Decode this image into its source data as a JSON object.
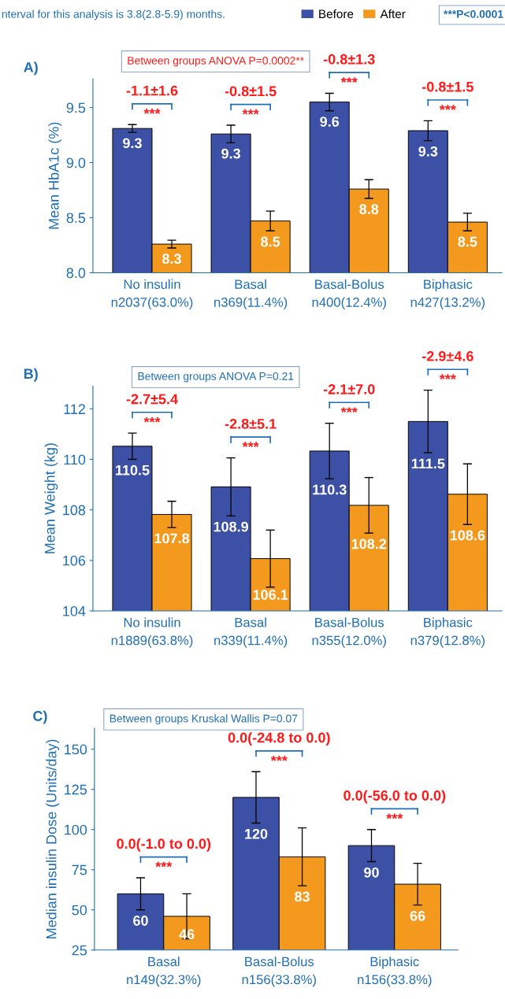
{
  "chart_data": [
    {
      "type": "bar",
      "title": "A)",
      "subtitle": "Between groups ANOVA P=0.0002**",
      "ylabel": "Mean HbA1c (%)",
      "legend": "top",
      "categories": [
        "No insulin\nn2037(63.0%)",
        "Basal\nn369(11.4%)",
        "Basal-Bolus\nn400(12.4%)",
        "Biphasic\nn427(13.2%)"
      ],
      "ylim": [
        8.0,
        9.76
      ],
      "yticks": [
        {
          "value": 8.0,
          "label": "8.0"
        },
        {
          "value": 8.5,
          "label": "8.5"
        },
        {
          "value": 9.0,
          "label": "9.0"
        },
        {
          "value": 9.5,
          "label": "9.5"
        }
      ],
      "series": [
        {
          "name": "Before",
          "color": "#3c50a6",
          "values": [
            9.31,
            9.26,
            9.55,
            9.29
          ],
          "errors": [
            0.035,
            0.08,
            0.08,
            0.09
          ],
          "value_labels": [
            "9.3",
            "9.3",
            "9.6",
            "9.3"
          ]
        },
        {
          "name": "After",
          "color": "#f39a1e",
          "values": [
            8.26,
            8.47,
            8.76,
            8.46
          ],
          "errors": [
            0.035,
            0.09,
            0.085,
            0.08
          ],
          "value_labels": [
            "8.3",
            "8.5",
            "8.8",
            "8.5"
          ]
        }
      ],
      "annotations": [
        "nterval for this analysis is 3.8(2.8-5.9) months.",
        "***P<0.0001",
        "-1.1±1.6",
        "***",
        "-0.8±1.5",
        "***",
        "-0.8±1.3",
        "***",
        "-0.8±1.5",
        "***"
      ]
    },
    {
      "type": "bar",
      "title": "B)",
      "subtitle": "Between groups ANOVA P=0.21",
      "ylabel": "Mean Weight (kg)",
      "categories": [
        "No insulin\nn1889(63.8%)",
        "Basal\nn339(11.4%)",
        "Basal-Bolus\nn355(12.0%)",
        "Biphasic\nn379(12.8%)"
      ],
      "ylim": [
        104,
        112.9
      ],
      "yticks": [
        104,
        106,
        108,
        110,
        112
      ],
      "series": [
        {
          "color": "#3c50a6",
          "values": [
            110.52,
            108.91,
            110.33,
            111.5
          ],
          "errors": [
            0.52,
            1.15,
            1.1,
            1.24
          ],
          "value_labels": [
            "110.5",
            "108.9",
            "110.3",
            "111.5"
          ]
        },
        {
          "color": "#f39a1e",
          "values": [
            107.82,
            106.07,
            108.18,
            108.62
          ],
          "errors": [
            0.52,
            1.13,
            1.1,
            1.2
          ],
          "value_labels": [
            "107.8",
            "106.1",
            "108.2",
            "108.6"
          ]
        }
      ],
      "annotations": [
        "-2.7±5.4",
        "***",
        "-2.8±5.1",
        "***",
        "-2.1±7.0",
        "***",
        "-2.9±4.6",
        "***"
      ]
    },
    {
      "type": "bar",
      "title": "C)",
      "subtitle": "Between groups Kruskal Wallis P=0.07",
      "ylabel": "Median insulin Dose (Units/day)",
      "data_labels": true,
      "categories": [
        "Basal\nn149(32.3%)",
        "Basal-Bolus\nn156(33.8%)",
        "Biphasic\nn156(33.8%)"
      ],
      "ylim": [
        25,
        163
      ],
      "yticks": [
        25,
        50,
        75,
        100,
        125,
        150
      ],
      "series": [
        {
          "color": "#3c50a6",
          "values": [
            60,
            120,
            90
          ],
          "errors": [
            10,
            16,
            10
          ]
        },
        {
          "color": "#f39a1e",
          "values": [
            46,
            83,
            66
          ],
          "errors": [
            14,
            18,
            13
          ]
        }
      ],
      "annotations": [
        "0.0(-1.0 to 0.0)",
        "***",
        "0.0(-24.8 to 0.0)",
        "***",
        "0.0(-56.0 to 0.0)",
        "***"
      ]
    }
  ]
}
